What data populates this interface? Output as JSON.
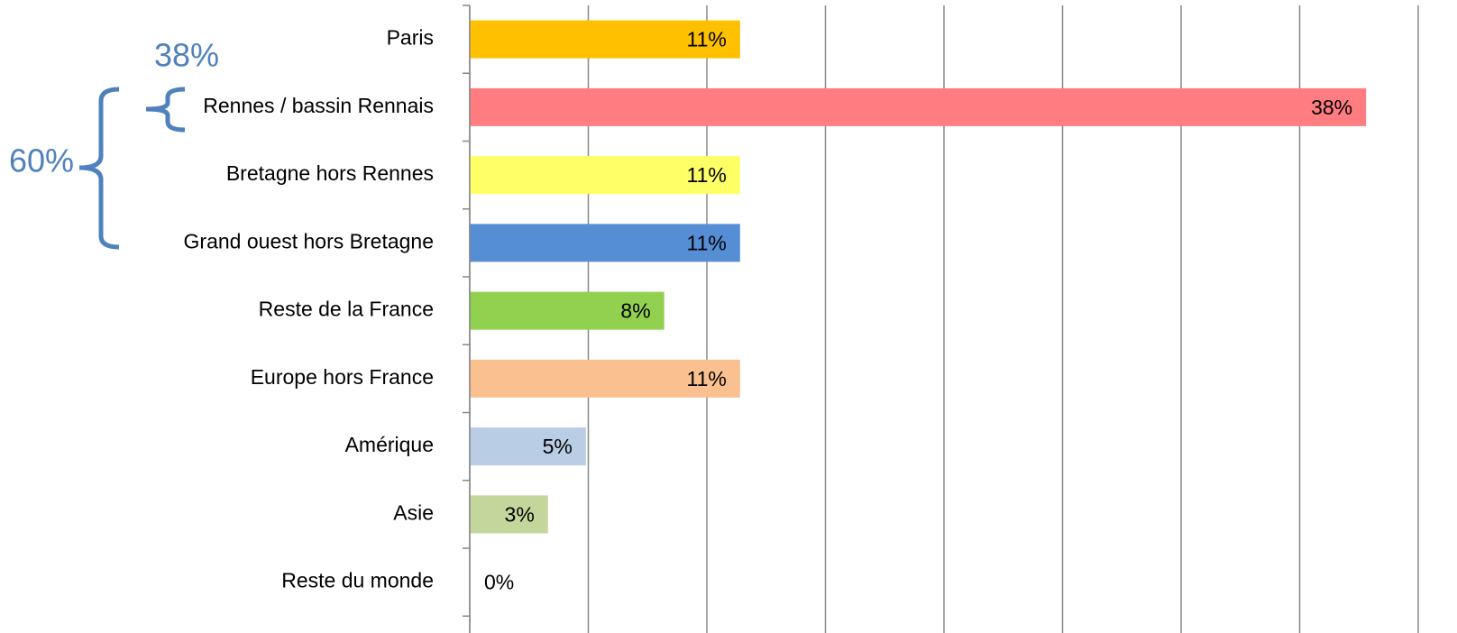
{
  "chart_data": {
    "type": "barh",
    "categories": [
      "Paris",
      "Rennes / bassin Rennais",
      "Bretagne hors Rennes",
      "Grand ouest hors Bretagne",
      "Reste de la France",
      "Europe hors France",
      "Amérique",
      "Asie",
      "Reste du monde"
    ],
    "values": [
      11.4,
      37.8,
      11.4,
      11.4,
      8.2,
      11.4,
      4.9,
      3.3,
      0
    ],
    "value_labels": [
      "11%",
      "38%",
      "11%",
      "11%",
      "8%",
      "11%",
      "5%",
      "3%",
      "0%"
    ],
    "colors": [
      "#ffc000",
      "#ff7c80",
      "#ffff66",
      "#558ed5",
      "#92d050",
      "#fac090",
      "#b9cde5",
      "#c3d69b",
      "#4f81bd"
    ],
    "xlim": [
      0,
      40
    ],
    "xticks": [
      0,
      5,
      10,
      15,
      20,
      25,
      30,
      35,
      40
    ],
    "grid": true,
    "annotations": [
      {
        "text": "38%"
      },
      {
        "text": "60%"
      }
    ]
  }
}
